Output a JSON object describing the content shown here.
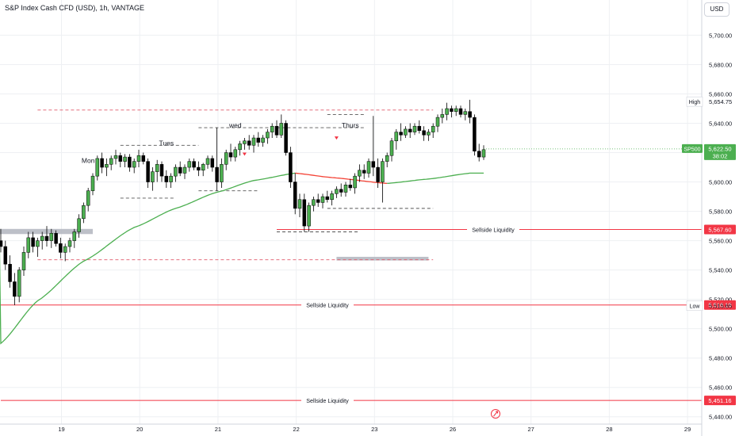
{
  "header": {
    "title": "S&P Index Cash CFD (USD), 1h, VANTAGE",
    "currency": "USD"
  },
  "colors": {
    "up": "#089981",
    "down": "#f23645",
    "ema_up": "#4caf50",
    "ema_down": "#f44336",
    "level": "#f23645",
    "grid": "#eef0f3"
  },
  "chart_data": {
    "type": "candlestick",
    "ylim": [
      5435,
      5724
    ],
    "y_ticks": [
      "5,440.00",
      "5,460.00",
      "5,480.00",
      "5,500.00",
      "5,520.00",
      "5,540.00",
      "5,560.00",
      "5,580.00",
      "5,600.00",
      "5,620.00",
      "5,640.00",
      "5,660.00",
      "5,680.00",
      "5,700.00"
    ],
    "x_ticks": [
      {
        "label": "19",
        "day": 1
      },
      {
        "label": "20",
        "day": 2
      },
      {
        "label": "21",
        "day": 3
      },
      {
        "label": "22",
        "day": 4
      },
      {
        "label": "23",
        "day": 5
      },
      {
        "label": "26",
        "day": 6
      },
      {
        "label": "27",
        "day": 7
      },
      {
        "label": "28",
        "day": 8
      },
      {
        "label": "29",
        "day": 9
      }
    ],
    "candles": [
      [
        5560,
        5568,
        5552,
        5556
      ],
      [
        5556,
        5560,
        5540,
        5544
      ],
      [
        5544,
        5550,
        5528,
        5532
      ],
      [
        5532,
        5538,
        5516,
        5522
      ],
      [
        5522,
        5542,
        5518,
        5540
      ],
      [
        5540,
        5556,
        5536,
        5552
      ],
      [
        5552,
        5566,
        5548,
        5562
      ],
      [
        5562,
        5566,
        5552,
        5556
      ],
      [
        5556,
        5562,
        5549,
        5560
      ],
      [
        5560,
        5566,
        5554,
        5563
      ],
      [
        5563,
        5570,
        5556,
        5560
      ],
      [
        5560,
        5568,
        5555,
        5565
      ],
      [
        5565,
        5567,
        5556,
        5558
      ],
      [
        5558,
        5562,
        5548,
        5552
      ],
      [
        5552,
        5558,
        5546,
        5556
      ],
      [
        5556,
        5562,
        5552,
        5560
      ],
      [
        5560,
        5568,
        5555,
        5566
      ],
      [
        5566,
        5578,
        5562,
        5575
      ],
      [
        5575,
        5586,
        5572,
        5584
      ],
      [
        5584,
        5596,
        5580,
        5594
      ],
      [
        5594,
        5606,
        5591,
        5604
      ],
      [
        5604,
        5618,
        5601,
        5616
      ],
      [
        5616,
        5620,
        5606,
        5610
      ],
      [
        5610,
        5616,
        5604,
        5612
      ],
      [
        5612,
        5618,
        5608,
        5616
      ],
      [
        5616,
        5622,
        5612,
        5618
      ],
      [
        5618,
        5620,
        5610,
        5614
      ],
      [
        5614,
        5619,
        5610,
        5617
      ],
      [
        5617,
        5619,
        5607,
        5610
      ],
      [
        5610,
        5616,
        5606,
        5614
      ],
      [
        5614,
        5622,
        5610,
        5618
      ],
      [
        5618,
        5620,
        5612,
        5614
      ],
      [
        5614,
        5616,
        5596,
        5600
      ],
      [
        5600,
        5610,
        5594,
        5607
      ],
      [
        5607,
        5615,
        5600,
        5612
      ],
      [
        5612,
        5614,
        5600,
        5604
      ],
      [
        5604,
        5608,
        5596,
        5600
      ],
      [
        5600,
        5606,
        5596,
        5604
      ],
      [
        5604,
        5612,
        5600,
        5610
      ],
      [
        5610,
        5614,
        5604,
        5606
      ],
      [
        5606,
        5612,
        5602,
        5610
      ],
      [
        5610,
        5616,
        5607,
        5614
      ],
      [
        5614,
        5616,
        5608,
        5610
      ],
      [
        5610,
        5614,
        5604,
        5608
      ],
      [
        5608,
        5613,
        5604,
        5612
      ],
      [
        5612,
        5618,
        5609,
        5616
      ],
      [
        5616,
        5618,
        5607,
        5610
      ],
      [
        5610,
        5637,
        5594,
        5600
      ],
      [
        5600,
        5616,
        5596,
        5612
      ],
      [
        5612,
        5622,
        5608,
        5620
      ],
      [
        5620,
        5626,
        5614,
        5617
      ],
      [
        5617,
        5624,
        5614,
        5622
      ],
      [
        5622,
        5628,
        5618,
        5626
      ],
      [
        5626,
        5630,
        5622,
        5628
      ],
      [
        5628,
        5632,
        5622,
        5625
      ],
      [
        5625,
        5632,
        5620,
        5630
      ],
      [
        5630,
        5634,
        5624,
        5627
      ],
      [
        5627,
        5632,
        5624,
        5630
      ],
      [
        5630,
        5636,
        5626,
        5634
      ],
      [
        5634,
        5640,
        5630,
        5638
      ],
      [
        5638,
        5642,
        5630,
        5632
      ],
      [
        5632,
        5646,
        5630,
        5640
      ],
      [
        5640,
        5642,
        5618,
        5620
      ],
      [
        5620,
        5624,
        5596,
        5600
      ],
      [
        5600,
        5606,
        5578,
        5582
      ],
      [
        5582,
        5592,
        5576,
        5588
      ],
      [
        5588,
        5592,
        5566,
        5570
      ],
      [
        5570,
        5586,
        5566,
        5584
      ],
      [
        5584,
        5590,
        5580,
        5588
      ],
      [
        5588,
        5592,
        5583,
        5586
      ],
      [
        5586,
        5592,
        5582,
        5590
      ],
      [
        5590,
        5594,
        5586,
        5588
      ],
      [
        5588,
        5594,
        5584,
        5592
      ],
      [
        5592,
        5597,
        5589,
        5595
      ],
      [
        5595,
        5599,
        5590,
        5593
      ],
      [
        5593,
        5600,
        5590,
        5598
      ],
      [
        5598,
        5602,
        5594,
        5596
      ],
      [
        5596,
        5606,
        5592,
        5604
      ],
      [
        5604,
        5612,
        5600,
        5608
      ],
      [
        5608,
        5612,
        5602,
        5606
      ],
      [
        5606,
        5616,
        5603,
        5614
      ],
      [
        5614,
        5645,
        5604,
        5610
      ],
      [
        5610,
        5616,
        5596,
        5600
      ],
      [
        5600,
        5616,
        5586,
        5614
      ],
      [
        5614,
        5620,
        5610,
        5618
      ],
      [
        5618,
        5630,
        5614,
        5628
      ],
      [
        5628,
        5636,
        5622,
        5634
      ],
      [
        5634,
        5640,
        5628,
        5632
      ],
      [
        5632,
        5638,
        5630,
        5636
      ],
      [
        5636,
        5640,
        5630,
        5634
      ],
      [
        5634,
        5640,
        5632,
        5638
      ],
      [
        5638,
        5642,
        5633,
        5635
      ],
      [
        5635,
        5638,
        5628,
        5632
      ],
      [
        5632,
        5636,
        5628,
        5634
      ],
      [
        5634,
        5640,
        5630,
        5638
      ],
      [
        5638,
        5646,
        5634,
        5644
      ],
      [
        5644,
        5650,
        5640,
        5646
      ],
      [
        5646,
        5654,
        5642,
        5650
      ],
      [
        5650,
        5652,
        5644,
        5648
      ],
      [
        5648,
        5652,
        5645,
        5650
      ],
      [
        5650,
        5652,
        5644,
        5646
      ],
      [
        5646,
        5650,
        5642,
        5648
      ],
      [
        5648,
        5656,
        5640,
        5644
      ],
      [
        5644,
        5646,
        5618,
        5621
      ],
      [
        5621,
        5626,
        5614,
        5617
      ],
      [
        5617,
        5625,
        5615,
        5622
      ]
    ],
    "ema_anchor": [
      [
        0,
        5490
      ],
      [
        8,
        5519
      ],
      [
        18,
        5546
      ],
      [
        29,
        5569
      ],
      [
        38,
        5582
      ],
      [
        47,
        5593
      ],
      [
        55,
        5601
      ],
      [
        64,
        5606
      ],
      [
        72,
        5603
      ],
      [
        84,
        5599
      ],
      [
        93,
        5602
      ],
      [
        102,
        5606
      ],
      [
        105,
        5606
      ]
    ],
    "ema_red_range": [
      64,
      84
    ],
    "price_levels": [
      {
        "price": 5567.6,
        "label": "5,567.60",
        "text": "Sellside Liquidity",
        "from": 60
      },
      {
        "price": 5516.19,
        "label": "5,516.19",
        "text": "Sellside Liquidity",
        "from": 0
      },
      {
        "price": 5451.16,
        "label": "5,451.16",
        "text": "Sellside Liquidity",
        "from": 0
      }
    ],
    "markers": {
      "high": {
        "label": "High",
        "value": "5,654.75",
        "price": 5654.75
      },
      "low": {
        "label": "Low",
        "value": "5,515.65",
        "price": 5515.65
      },
      "current": {
        "symbol": "SP500",
        "value": "5,622.50",
        "countdown": "38:02",
        "price": 5622.5
      }
    },
    "annotations": [
      {
        "text": "Mon",
        "i": 19,
        "price": 5613
      },
      {
        "text": "Tues",
        "i": 36,
        "price": 5625
      },
      {
        "text": "wed",
        "i": 51,
        "price": 5637
      },
      {
        "text": "Thurs",
        "i": 76,
        "price": 5637
      }
    ],
    "dashed_lines": [
      {
        "from": 8,
        "to": 94,
        "price": 5649,
        "color": "#e05a6a"
      },
      {
        "from": 8,
        "to": 94,
        "price": 5547,
        "color": "#e05a6a"
      },
      {
        "from": 26,
        "to": 43,
        "price": 5625,
        "color": "#555"
      },
      {
        "from": 26,
        "to": 38,
        "price": 5589,
        "color": "#555"
      },
      {
        "from": 43,
        "to": 71,
        "price": 5637,
        "color": "#555"
      },
      {
        "from": 43,
        "to": 56,
        "price": 5594,
        "color": "#555"
      },
      {
        "from": 71,
        "to": 79,
        "price": 5646,
        "color": "#555"
      },
      {
        "from": 71,
        "to": 79,
        "price": 5637,
        "color": "#555"
      },
      {
        "from": 71,
        "to": 94,
        "price": 5582,
        "color": "#555"
      },
      {
        "from": 60,
        "to": 78,
        "price": 5566,
        "color": "#555"
      }
    ],
    "zones": [
      {
        "from": -3,
        "to": 20,
        "y1": 5564.5,
        "y2": 5568,
        "color": "#b2b5be"
      },
      {
        "from": 73,
        "to": 93,
        "y1": 5546.5,
        "y2": 5549,
        "color": "#b2b5be"
      }
    ],
    "down_arrows": [
      {
        "i": 53,
        "price": 5620
      },
      {
        "i": 73,
        "price": 5631
      }
    ]
  }
}
